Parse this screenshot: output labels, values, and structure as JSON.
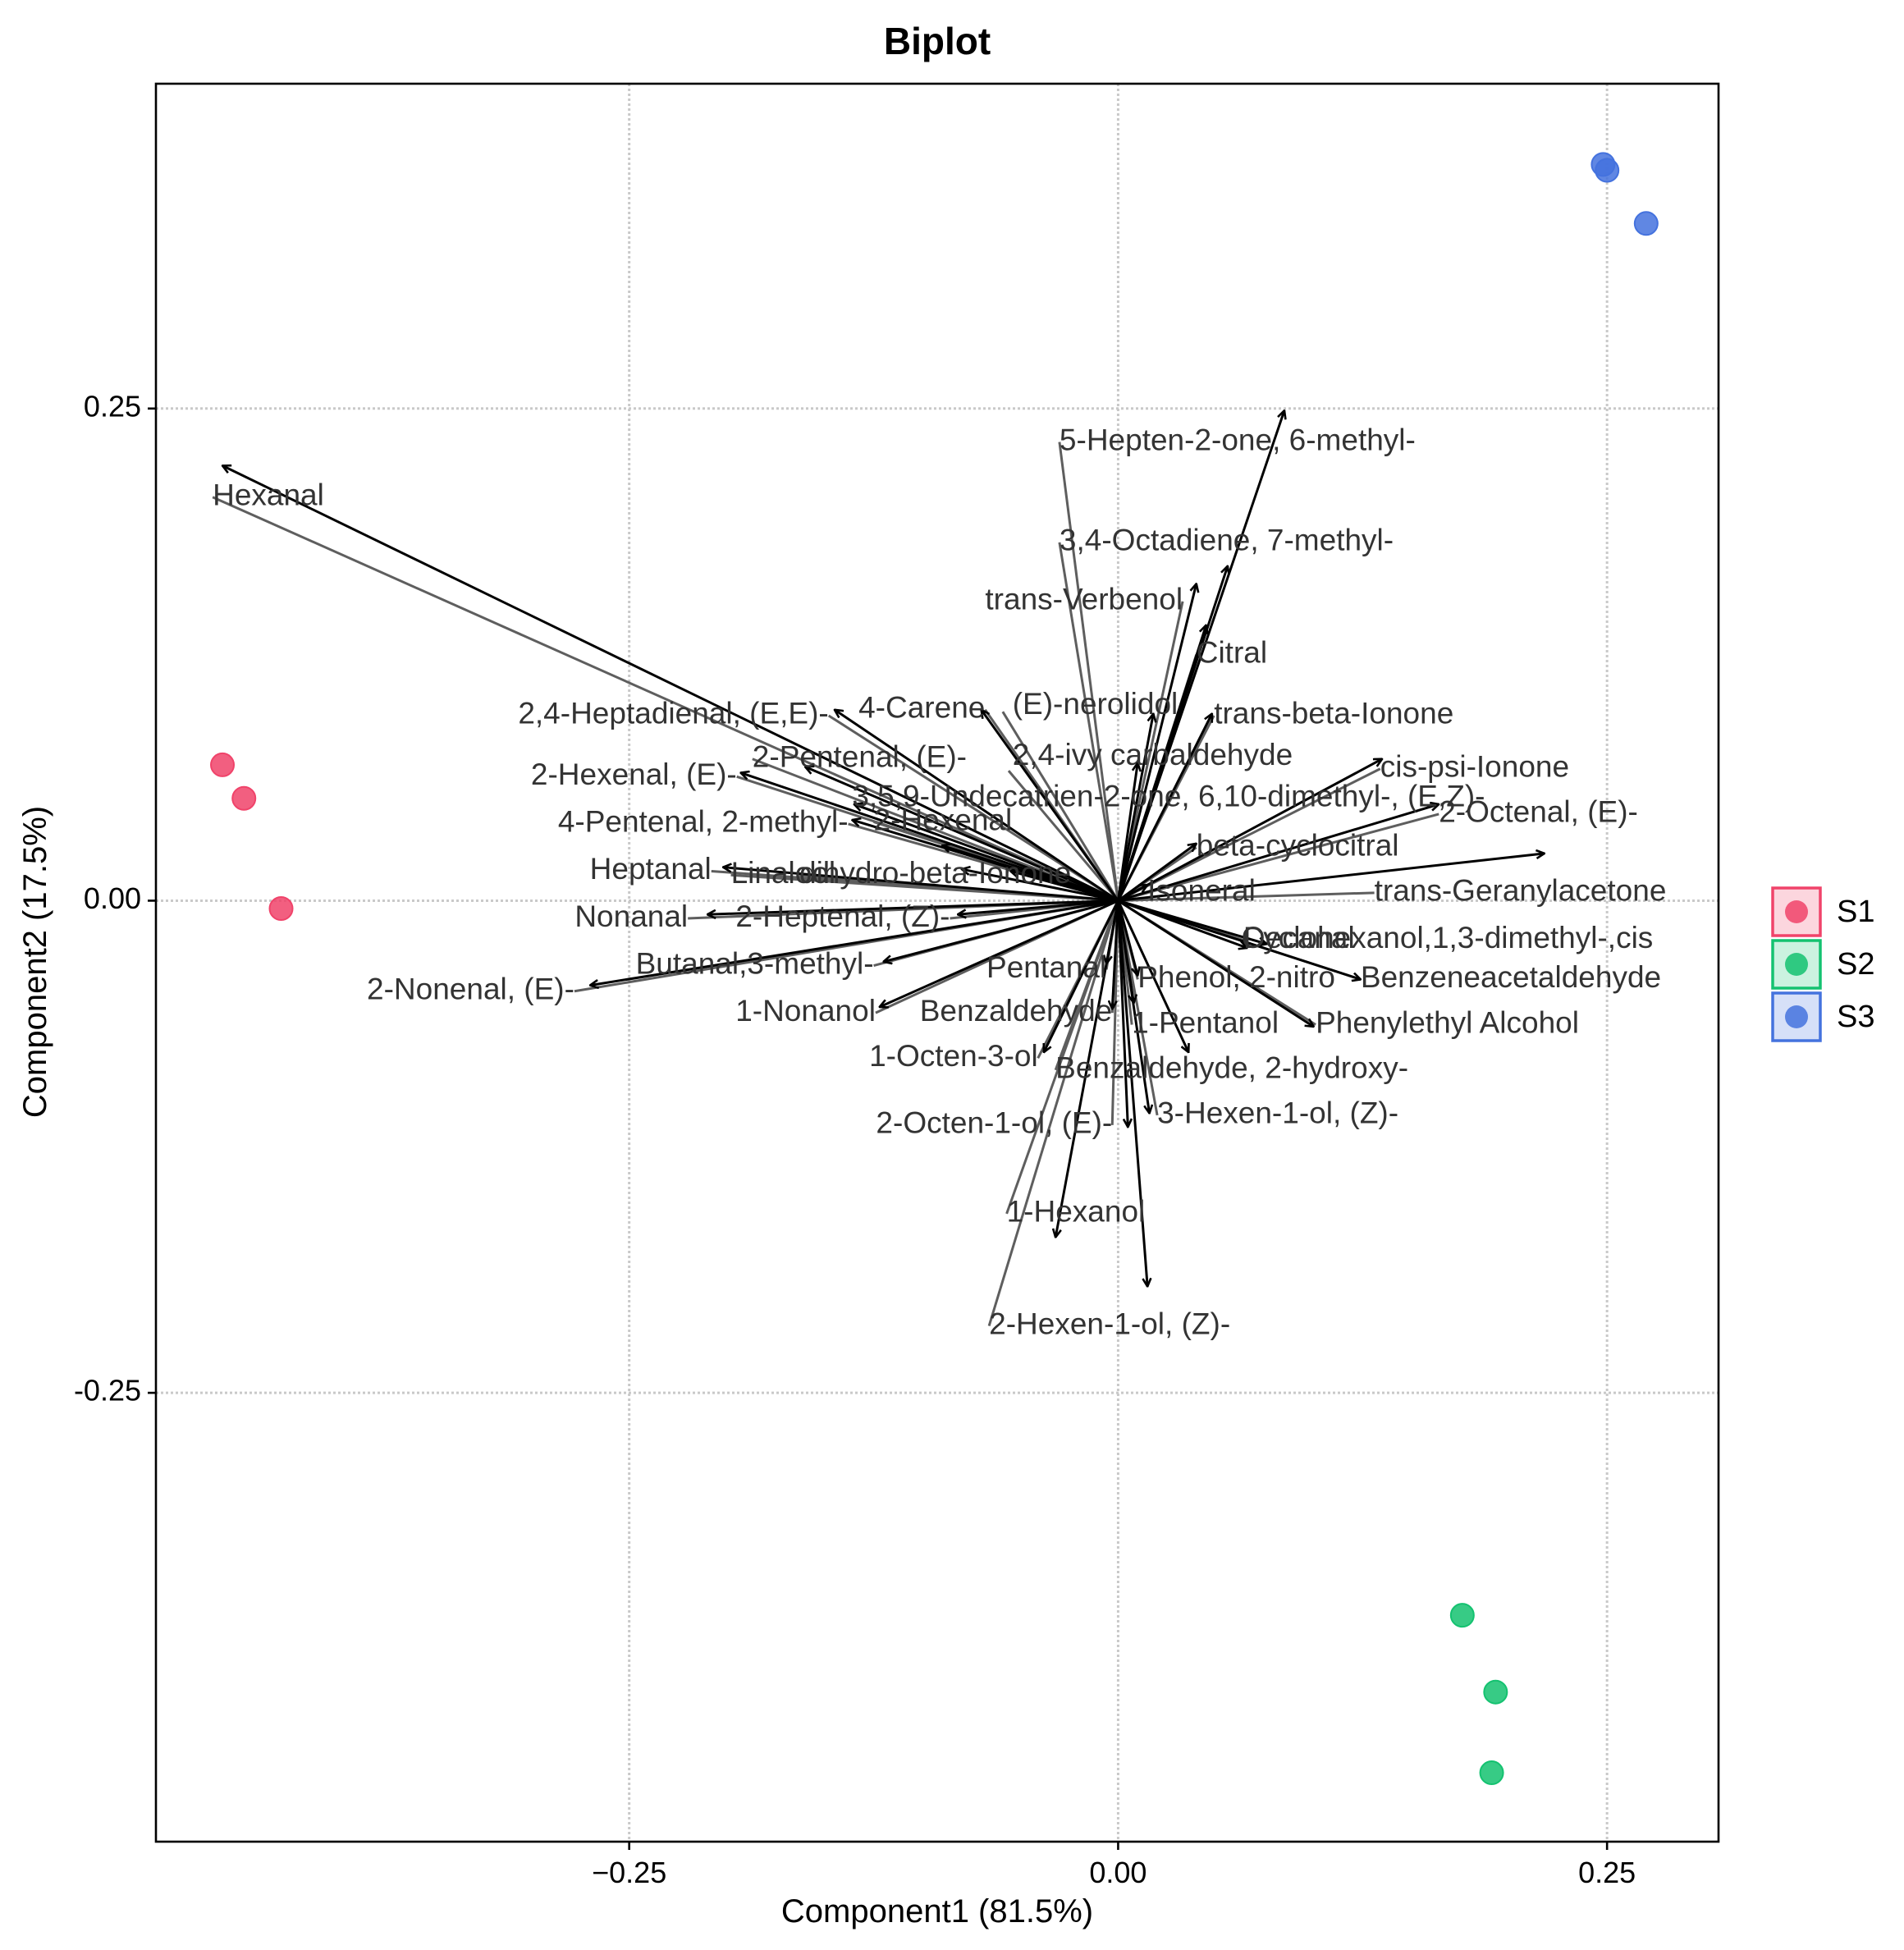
{
  "chart_data": {
    "type": "scatter",
    "subtype": "biplot",
    "title": "Biplot",
    "xlabel": "Component1 (81.5%)",
    "ylabel": "Component2 (17.5%)",
    "xlim": [
      -0.492,
      0.307
    ],
    "ylim": [
      -0.478,
      0.415
    ],
    "x_ticks": [
      {
        "value": -0.25,
        "label": "−0.25"
      },
      {
        "value": 0.0,
        "label": "0.00"
      },
      {
        "value": 0.25,
        "label": "0.25"
      }
    ],
    "y_ticks": [
      {
        "value": 0.25,
        "label": "0.25"
      },
      {
        "value": 0.0,
        "label": "0.00"
      },
      {
        "value": -0.25,
        "label": "-0.25"
      }
    ],
    "grid": true,
    "legend_position": "right",
    "series": [
      {
        "name": "S1",
        "color": "#F0436A",
        "points": [
          [
            -0.458,
            0.069
          ],
          [
            -0.447,
            0.052
          ],
          [
            -0.428,
            -0.004
          ]
        ]
      },
      {
        "name": "S2",
        "color": "#14C270",
        "points": [
          [
            0.176,
            -0.363
          ],
          [
            0.193,
            -0.402
          ],
          [
            0.191,
            -0.443
          ]
        ]
      },
      {
        "name": "S3",
        "color": "#4472DE",
        "points": [
          [
            0.248,
            0.374
          ],
          [
            0.25,
            0.371
          ],
          [
            0.27,
            0.344
          ]
        ]
      }
    ],
    "loadings": [
      {
        "label": "Hexanal",
        "end": [
          -0.458,
          0.221
        ],
        "pos": [
          -0.463,
          0.205
        ],
        "anchor": "start"
      },
      {
        "label": "5-Hepten-2-one, 6-methyl-",
        "end": [
          0.085,
          0.249
        ],
        "pos": [
          -0.03,
          0.233
        ],
        "anchor": "start"
      },
      {
        "label": "3,4-Octadiene, 7-methyl-",
        "end": [
          0.056,
          0.17
        ],
        "pos": [
          -0.03,
          0.182
        ],
        "anchor": "start"
      },
      {
        "label": "trans-Verbenol",
        "end": [
          0.04,
          0.161
        ],
        "pos": [
          0.033,
          0.152
        ],
        "anchor": "end"
      },
      {
        "label": "Citral",
        "end": [
          0.045,
          0.14
        ],
        "pos": [
          0.04,
          0.125
        ],
        "anchor": "start"
      },
      {
        "label": "(E)-nerolidol",
        "end": [
          0.018,
          0.095
        ],
        "pos": [
          -0.054,
          0.099
        ],
        "anchor": "start",
        "line_from": [
          -0.059,
          0.096
        ]
      },
      {
        "label": "trans-beta-Ionone",
        "end": [
          0.048,
          0.095
        ],
        "pos": [
          0.049,
          0.094
        ],
        "anchor": "start"
      },
      {
        "label": "2,4-ivy carbaldehyde",
        "end": [
          0.01,
          0.07
        ],
        "pos": [
          -0.054,
          0.073
        ],
        "anchor": "start",
        "line_from": [
          -0.056,
          0.066
        ]
      },
      {
        "label": "cis-psi-Ionone",
        "end": [
          0.135,
          0.072
        ],
        "pos": [
          0.134,
          0.067
        ],
        "anchor": "start"
      },
      {
        "label": "3,5,9-Undecatrien-2-one, 6,10-dimethyl-, (E,Z)-",
        "end": [
          -0.135,
          0.049
        ],
        "pos": [
          -0.136,
          0.052
        ],
        "anchor": "start",
        "line_from": [
          0.01,
          0.03
        ]
      },
      {
        "label": "2-Octenal, (E)-",
        "end": [
          0.164,
          0.049
        ],
        "pos": [
          0.164,
          0.044
        ],
        "anchor": "start"
      },
      {
        "label": "beta-cyclocitral",
        "end": [
          0.04,
          0.029
        ],
        "pos": [
          0.04,
          0.027
        ],
        "anchor": "start"
      },
      {
        "label": "trans-Geranylacetone",
        "end": [
          0.218,
          0.024
        ],
        "pos": [
          0.131,
          0.004
        ],
        "anchor": "start",
        "arrow": true
      },
      {
        "label": "Isoneral",
        "end": [
          0.015,
          0.008
        ],
        "pos": [
          0.015,
          0.004
        ],
        "anchor": "start"
      },
      {
        "label": "Decanal",
        "end": [
          0.066,
          -0.024
        ],
        "pos": [
          0.064,
          -0.02
        ],
        "anchor": "start"
      },
      {
        "label": "Cyclohexanol,1,3-dimethyl-,cis",
        "end": [
          0.076,
          -0.022
        ],
        "pos": [
          0.063,
          -0.02
        ],
        "anchor": "start"
      },
      {
        "label": "Benzeneacetaldehyde",
        "end": [
          0.124,
          -0.04
        ],
        "pos": [
          0.124,
          -0.04
        ],
        "anchor": "start"
      },
      {
        "label": "Phenol, 2-nitro",
        "end": [
          0.01,
          -0.038
        ],
        "pos": [
          0.01,
          -0.04
        ],
        "anchor": "start"
      },
      {
        "label": "Phenylethyl Alcohol",
        "end": [
          0.1,
          -0.064
        ],
        "pos": [
          0.101,
          -0.063
        ],
        "anchor": "start"
      },
      {
        "label": "1-Pentanol",
        "end": [
          0.008,
          -0.052
        ],
        "pos": [
          0.007,
          -0.063
        ],
        "anchor": "start"
      },
      {
        "label": "Benzaldehyde, 2-hydroxy-",
        "end": [
          0.036,
          -0.077
        ],
        "pos": [
          -0.032,
          -0.086
        ],
        "anchor": "start"
      },
      {
        "label": "3-Hexen-1-ol, (Z)-",
        "end": [
          0.016,
          -0.108
        ],
        "pos": [
          0.02,
          -0.109
        ],
        "anchor": "start",
        "arrow": true
      },
      {
        "label": "2-Octen-1-ol, (E)-",
        "end": [
          0.005,
          -0.115
        ],
        "pos": [
          -0.003,
          -0.114
        ],
        "anchor": "end"
      },
      {
        "label": "1-Hexanol",
        "end": [
          -0.032,
          -0.171
        ],
        "pos": [
          -0.057,
          -0.159
        ],
        "anchor": "start",
        "arrow": true
      },
      {
        "label": "2-Hexen-1-ol, (Z)-",
        "end": [
          0.015,
          -0.196
        ],
        "pos": [
          -0.066,
          -0.216
        ],
        "anchor": "start",
        "arrow": true
      },
      {
        "label": "Pentanal",
        "end": [
          -0.006,
          -0.032
        ],
        "pos": [
          -0.006,
          -0.035
        ],
        "anchor": "end"
      },
      {
        "label": "Benzaldehyde",
        "end": [
          -0.003,
          -0.055
        ],
        "pos": [
          -0.003,
          -0.057
        ],
        "anchor": "end"
      },
      {
        "label": "1-Octen-3-ol",
        "end": [
          -0.038,
          -0.077
        ],
        "pos": [
          -0.041,
          -0.08
        ],
        "anchor": "end"
      },
      {
        "label": "1-Nonanol",
        "end": [
          -0.122,
          -0.054
        ],
        "pos": [
          -0.124,
          -0.057
        ],
        "anchor": "end"
      },
      {
        "label": "2-Nonenal, (E)-",
        "end": [
          -0.27,
          -0.043
        ],
        "pos": [
          -0.278,
          -0.046
        ],
        "anchor": "end"
      },
      {
        "label": "Butanal,3-methyl-",
        "end": [
          -0.12,
          -0.031
        ],
        "pos": [
          -0.125,
          -0.033
        ],
        "anchor": "end"
      },
      {
        "label": "2-Heptenal, (Z)-",
        "end": [
          -0.082,
          -0.007
        ],
        "pos": [
          -0.086,
          -0.009
        ],
        "anchor": "end"
      },
      {
        "label": "Nonanal",
        "end": [
          -0.21,
          -0.007
        ],
        "pos": [
          -0.22,
          -0.009
        ],
        "anchor": "end"
      },
      {
        "label": "Heptanal",
        "end": [
          -0.202,
          0.017
        ],
        "pos": [
          -0.208,
          0.015
        ],
        "anchor": "end"
      },
      {
        "label": "Linalool",
        "end": [
          -0.08,
          0.016
        ],
        "pos": [
          -0.198,
          0.013
        ],
        "anchor": "start"
      },
      {
        "label": "dihydro-beta-Ionone",
        "end": [
          -0.055,
          0.015
        ],
        "pos": [
          -0.163,
          0.013
        ],
        "anchor": "start"
      },
      {
        "label": "4-Pentenal, 2-methyl-",
        "end": [
          -0.136,
          0.041
        ],
        "pos": [
          -0.138,
          0.039
        ],
        "anchor": "end"
      },
      {
        "label": "2-Hexenal",
        "end": [
          -0.09,
          0.028
        ],
        "pos": [
          -0.125,
          0.04
        ],
        "anchor": "start"
      },
      {
        "label": "2-Hexenal, (E)-",
        "end": [
          -0.193,
          0.065
        ],
        "pos": [
          -0.195,
          0.063
        ],
        "anchor": "end"
      },
      {
        "label": "2-Pentenal, (E)-",
        "end": [
          -0.16,
          0.068
        ],
        "pos": [
          -0.187,
          0.072
        ],
        "anchor": "start"
      },
      {
        "label": "4-Carene",
        "end": [
          -0.07,
          0.097
        ],
        "pos": [
          -0.068,
          0.097
        ],
        "anchor": "end"
      },
      {
        "label": "2,4-Heptadienal, (E,E)-",
        "end": [
          -0.145,
          0.097
        ],
        "pos": [
          -0.148,
          0.094
        ],
        "anchor": "end"
      }
    ],
    "legend": [
      {
        "name": "S1",
        "color": "#F0436A"
      },
      {
        "name": "S2",
        "color": "#14C270"
      },
      {
        "name": "S3",
        "color": "#4472DE"
      }
    ]
  }
}
